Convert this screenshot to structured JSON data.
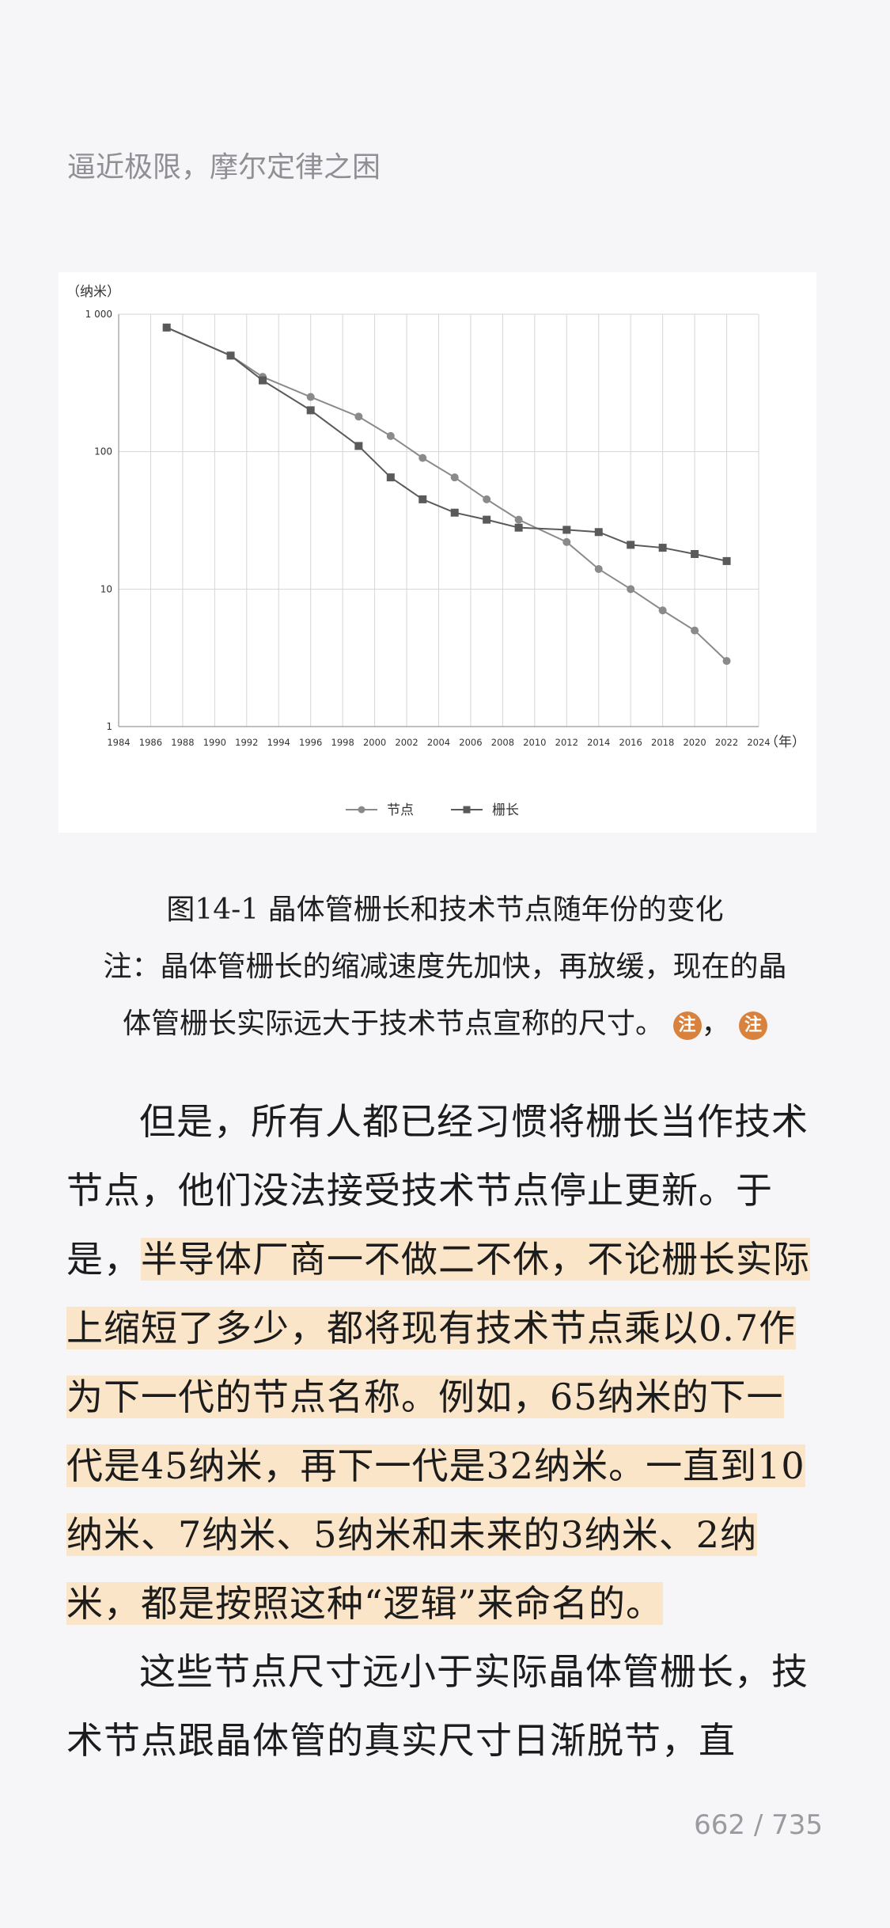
{
  "header": {
    "title": "逼近极限，摩尔定律之困"
  },
  "figure": {
    "caption_title": "图14-1 晶体管栅长和技术节点随年份的变化",
    "caption_note_line1": "注：晶体管栅长的缩减速度先加快，再放缓，现在的晶",
    "caption_note_line2": "体管栅长实际远大于技术节点宣称的尺寸。",
    "note_badge_label": "注",
    "note_separator": "，"
  },
  "chart_data": {
    "type": "line",
    "yscale": "log",
    "ylabel": "（纳米）",
    "xlabel": "（年）",
    "ylim": [
      1,
      1000
    ],
    "xlim": [
      1984,
      2024
    ],
    "grid": true,
    "legend_position": "bottom",
    "x_ticks": [
      1984,
      1986,
      1988,
      1990,
      1992,
      1994,
      1996,
      1998,
      2000,
      2002,
      2004,
      2006,
      2008,
      2010,
      2012,
      2014,
      2016,
      2018,
      2020,
      2022,
      2024
    ],
    "y_ticks": [
      {
        "value": 1000,
        "label": "1 000"
      },
      {
        "value": 100,
        "label": "100"
      },
      {
        "value": 10,
        "label": "10"
      },
      {
        "value": 1,
        "label": "1"
      }
    ],
    "series": [
      {
        "name": "节点",
        "marker": "circle",
        "color": "#8a8a8a",
        "points": [
          [
            1987,
            800
          ],
          [
            1991,
            500
          ],
          [
            1993,
            350
          ],
          [
            1996,
            250
          ],
          [
            1999,
            180
          ],
          [
            2001,
            130
          ],
          [
            2003,
            90
          ],
          [
            2005,
            65
          ],
          [
            2007,
            45
          ],
          [
            2009,
            32
          ],
          [
            2012,
            22
          ],
          [
            2014,
            14
          ],
          [
            2016,
            10
          ],
          [
            2018,
            7
          ],
          [
            2020,
            5
          ],
          [
            2022,
            3
          ]
        ]
      },
      {
        "name": "栅长",
        "marker": "square",
        "color": "#5a5a5a",
        "points": [
          [
            1987,
            800
          ],
          [
            1991,
            500
          ],
          [
            1993,
            330
          ],
          [
            1996,
            200
          ],
          [
            1999,
            110
          ],
          [
            2001,
            65
          ],
          [
            2003,
            45
          ],
          [
            2005,
            36
          ],
          [
            2007,
            32
          ],
          [
            2009,
            28
          ],
          [
            2012,
            27
          ],
          [
            2014,
            26
          ],
          [
            2016,
            21
          ],
          [
            2018,
            20
          ],
          [
            2020,
            18
          ],
          [
            2022,
            16
          ]
        ]
      }
    ]
  },
  "body": {
    "p1_before": "但是，所有人都已经习惯将栅长当作技术节点，他们没法接受技术节点停止更新。于是，",
    "p1_highlight": "半导体厂商一不做二不休，不论栅长实际上缩短了多少，都将现有技术节点乘以0.7作为下一代的节点名称。例如，65纳米的下一代是45纳米，再下一代是32纳米。一直到10纳米、7纳米、5纳米和未来的3纳米、2纳米，都是按照这种“逻辑”来命名的。",
    "p2": "这些节点尺寸远小于实际晶体管栅长，技术节点跟晶体管的真实尺寸日渐脱节，直"
  },
  "footer": {
    "page_indicator": "662 / 735"
  },
  "colors": {
    "highlight": "#fbe5c8",
    "note_badge": "#d9823e"
  }
}
